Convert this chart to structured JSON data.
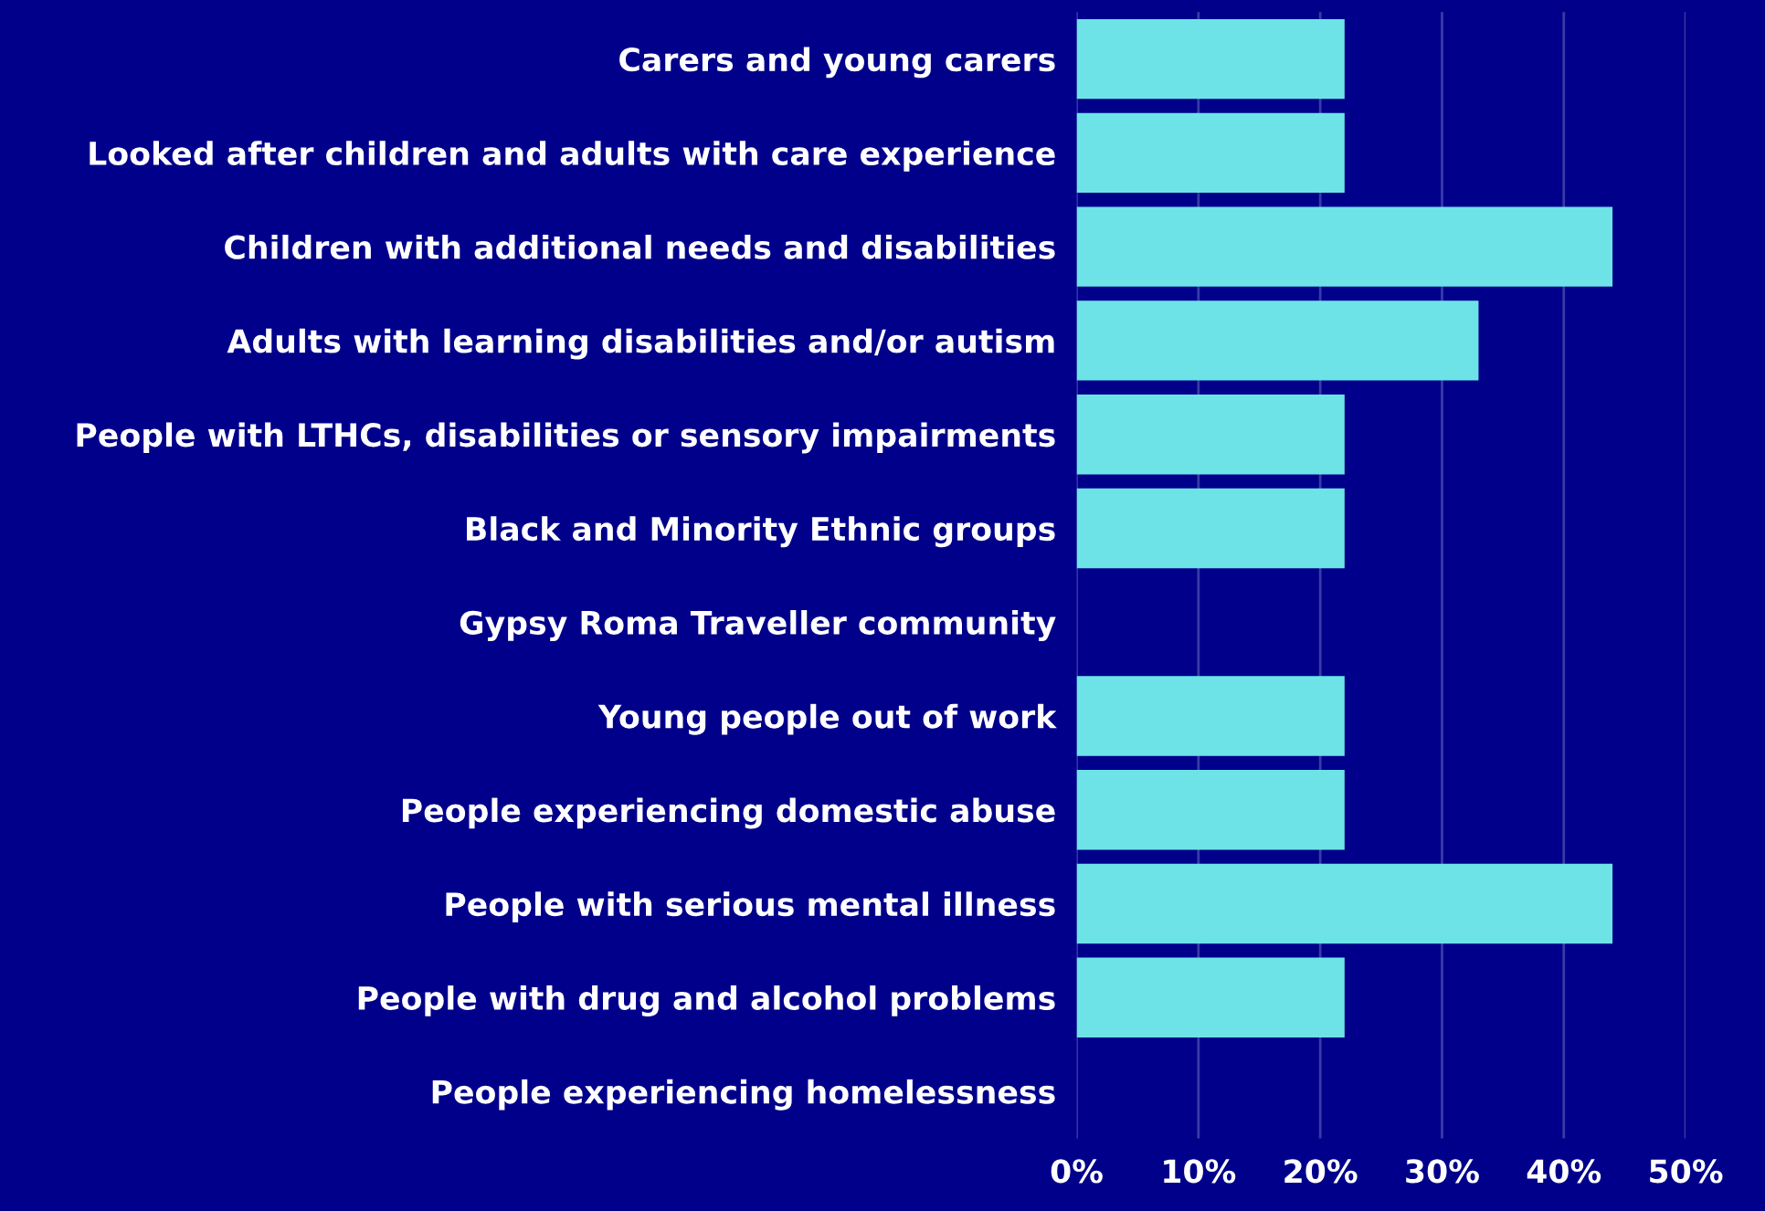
{
  "chart_data": {
    "type": "bar",
    "orientation": "horizontal",
    "categories": [
      "Carers and young carers",
      "Looked after children and adults with care experience",
      "Children with additional needs and disabilities",
      "Adults with learning disabilities and/or autism",
      "People with LTHCs, disabilities or sensory impairments",
      "Black and Minority Ethnic groups",
      "Gypsy Roma Traveller community",
      "Young people out of work",
      "People experiencing domestic abuse",
      "People with serious mental illness",
      "People with drug and alcohol problems",
      "People experiencing homelessness"
    ],
    "values": [
      22,
      22,
      44,
      33,
      22,
      22,
      0,
      22,
      22,
      44,
      22,
      0
    ],
    "color": "#6de3e8",
    "xlim": [
      0,
      50
    ],
    "xticks": [
      {
        "value": 0,
        "label": "0%"
      },
      {
        "value": 10,
        "label": "10%"
      },
      {
        "value": 20,
        "label": "20%"
      },
      {
        "value": 30,
        "label": "30%"
      },
      {
        "value": 40,
        "label": "40%"
      },
      {
        "value": 50,
        "label": "50%"
      }
    ],
    "grid": "x"
  }
}
